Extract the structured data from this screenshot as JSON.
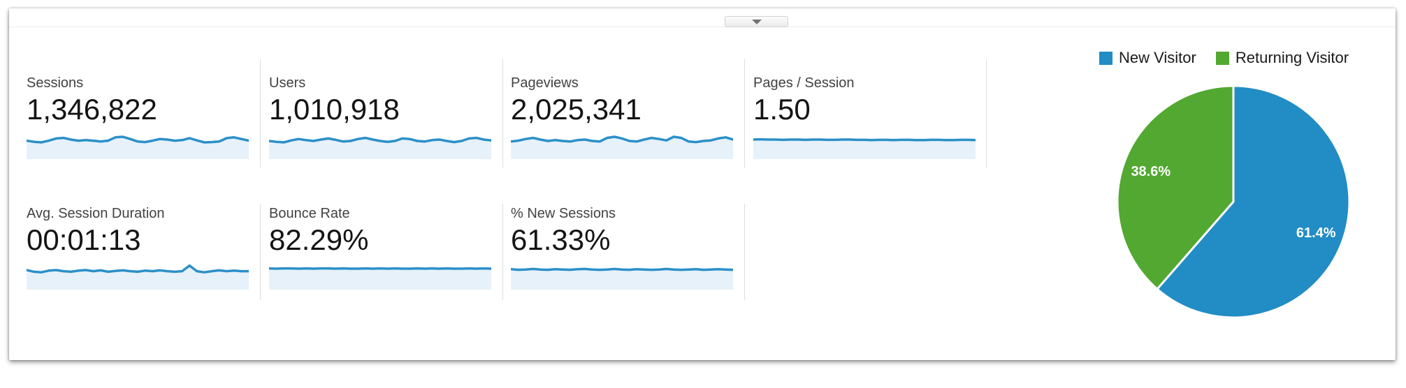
{
  "panel": {
    "collapse_button": {
      "icon": "chevron-down"
    }
  },
  "metrics": {
    "row1": [
      {
        "label": "Sessions",
        "value": "1,346,822"
      },
      {
        "label": "Users",
        "value": "1,010,918"
      },
      {
        "label": "Pageviews",
        "value": "2,025,341"
      },
      {
        "label": "Pages / Session",
        "value": "1.50"
      }
    ],
    "row2": [
      {
        "label": "Avg. Session Duration",
        "value": "00:01:13"
      },
      {
        "label": "Bounce Rate",
        "value": "82.29%"
      },
      {
        "label": "% New Sessions",
        "value": "61.33%"
      }
    ]
  },
  "colors": {
    "sparkline_line": "#2b90c8",
    "sparkline_fill": "#e7f1f9",
    "new_visitor_blue": "#228cc5",
    "returning_visitor_green": "#52a830"
  },
  "chart_data": [
    {
      "type": "pie",
      "title": "New vs Returning Visitor share of sessions",
      "start_angle_deg": 0,
      "direction": "clockwise",
      "legend_position": "top",
      "series": [
        {
          "name": "New Visitor",
          "value": 61.4,
          "label": "61.4%",
          "color": "#228cc5"
        },
        {
          "name": "Returning Visitor",
          "value": 38.6,
          "label": "38.6%",
          "color": "#52a830"
        }
      ]
    },
    {
      "type": "area",
      "title": "Metric sparklines (normalized 0-1, no axes shown)",
      "ylim": [
        0,
        1
      ],
      "line_color": "#2b90c8",
      "fill_color": "#e7f1f9",
      "series": [
        {
          "name": "Sessions",
          "values": [
            0.66,
            0.62,
            0.6,
            0.66,
            0.74,
            0.76,
            0.7,
            0.66,
            0.68,
            0.66,
            0.63,
            0.66,
            0.78,
            0.8,
            0.72,
            0.63,
            0.61,
            0.66,
            0.72,
            0.7,
            0.66,
            0.68,
            0.75,
            0.67,
            0.6,
            0.61,
            0.63,
            0.75,
            0.78,
            0.72,
            0.66
          ]
        },
        {
          "name": "Users",
          "values": [
            0.65,
            0.62,
            0.6,
            0.67,
            0.72,
            0.68,
            0.65,
            0.7,
            0.74,
            0.69,
            0.63,
            0.65,
            0.72,
            0.76,
            0.7,
            0.65,
            0.62,
            0.65,
            0.74,
            0.72,
            0.65,
            0.63,
            0.68,
            0.7,
            0.65,
            0.61,
            0.65,
            0.74,
            0.76,
            0.7,
            0.67
          ]
        },
        {
          "name": "Pageviews",
          "values": [
            0.63,
            0.66,
            0.72,
            0.76,
            0.7,
            0.65,
            0.68,
            0.65,
            0.63,
            0.68,
            0.7,
            0.65,
            0.63,
            0.76,
            0.8,
            0.74,
            0.65,
            0.63,
            0.7,
            0.76,
            0.72,
            0.67,
            0.8,
            0.76,
            0.63,
            0.61,
            0.65,
            0.67,
            0.74,
            0.78,
            0.7
          ]
        },
        {
          "name": "Pages / Session",
          "values": [
            0.7,
            0.71,
            0.7,
            0.7,
            0.69,
            0.7,
            0.7,
            0.69,
            0.7,
            0.7,
            0.69,
            0.69,
            0.7,
            0.7,
            0.69,
            0.69,
            0.68,
            0.69,
            0.69,
            0.68,
            0.69,
            0.69,
            0.68,
            0.68,
            0.69,
            0.69,
            0.68,
            0.68,
            0.69,
            0.69,
            0.68
          ]
        },
        {
          "name": "Avg. Session Duration",
          "values": [
            0.7,
            0.64,
            0.62,
            0.68,
            0.7,
            0.66,
            0.64,
            0.68,
            0.7,
            0.66,
            0.69,
            0.64,
            0.67,
            0.69,
            0.66,
            0.64,
            0.68,
            0.66,
            0.69,
            0.66,
            0.64,
            0.66,
            0.86,
            0.66,
            0.62,
            0.66,
            0.69,
            0.66,
            0.68,
            0.66,
            0.66
          ]
        },
        {
          "name": "Bounce Rate",
          "values": [
            0.76,
            0.75,
            0.76,
            0.76,
            0.75,
            0.76,
            0.75,
            0.76,
            0.76,
            0.75,
            0.76,
            0.75,
            0.75,
            0.76,
            0.75,
            0.76,
            0.75,
            0.76,
            0.75,
            0.75,
            0.76,
            0.75,
            0.76,
            0.75,
            0.76,
            0.75,
            0.75,
            0.76,
            0.75,
            0.76,
            0.75
          ]
        },
        {
          "name": "% New Sessions",
          "values": [
            0.73,
            0.71,
            0.72,
            0.74,
            0.72,
            0.71,
            0.73,
            0.72,
            0.71,
            0.73,
            0.74,
            0.72,
            0.71,
            0.72,
            0.74,
            0.72,
            0.71,
            0.73,
            0.72,
            0.71,
            0.72,
            0.74,
            0.72,
            0.71,
            0.72,
            0.73,
            0.71,
            0.72,
            0.73,
            0.72,
            0.71
          ]
        }
      ]
    }
  ]
}
